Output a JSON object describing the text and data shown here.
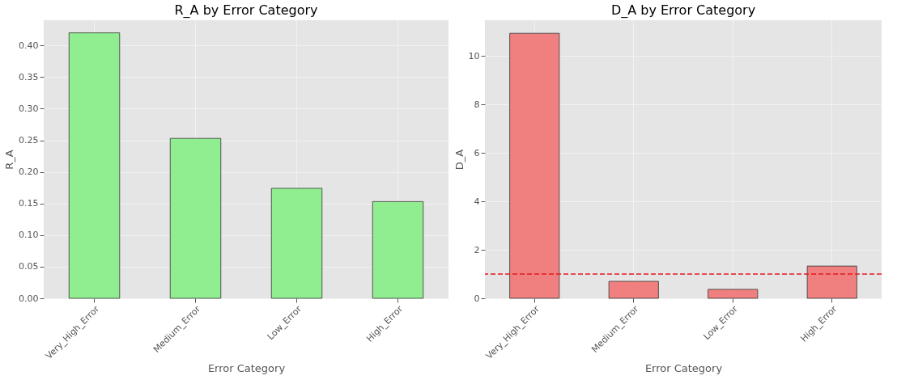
{
  "chart_data": [
    {
      "type": "bar",
      "title": "R_A by Error Category",
      "xlabel": "Error Category",
      "ylabel": "R_A",
      "categories": [
        "Very_High_Error",
        "Medium_Error",
        "Low_Error",
        "High_Error"
      ],
      "values": [
        0.42,
        0.253,
        0.174,
        0.153
      ],
      "color": "#90ee90",
      "ylim": [
        0,
        0.44
      ],
      "yticks": [
        {
          "value": 0,
          "label": "0.00"
        },
        {
          "value": 0.05,
          "label": "0.05"
        },
        {
          "value": 0.1,
          "label": "0.10"
        },
        {
          "value": 0.15,
          "label": "0.15"
        },
        {
          "value": 0.2,
          "label": "0.20"
        },
        {
          "value": 0.25,
          "label": "0.25"
        },
        {
          "value": 0.3,
          "label": "0.30"
        },
        {
          "value": 0.35,
          "label": "0.35"
        },
        {
          "value": 0.4,
          "label": "0.40"
        }
      ],
      "grid": true
    },
    {
      "type": "bar",
      "title": "D_A by Error Category",
      "xlabel": "Error Category",
      "ylabel": "D_A",
      "categories": [
        "Very_High_Error",
        "Medium_Error",
        "Low_Error",
        "High_Error"
      ],
      "values": [
        10.93,
        0.7,
        0.37,
        1.33
      ],
      "color": "#f08080",
      "ylim": [
        0,
        11.47
      ],
      "yticks": [
        0,
        2,
        4,
        6,
        8,
        10
      ],
      "grid": true,
      "ref_lines": [
        {
          "axis": "y",
          "value": 1,
          "color": "#e31a1c",
          "line_style": "dashed"
        }
      ]
    }
  ]
}
